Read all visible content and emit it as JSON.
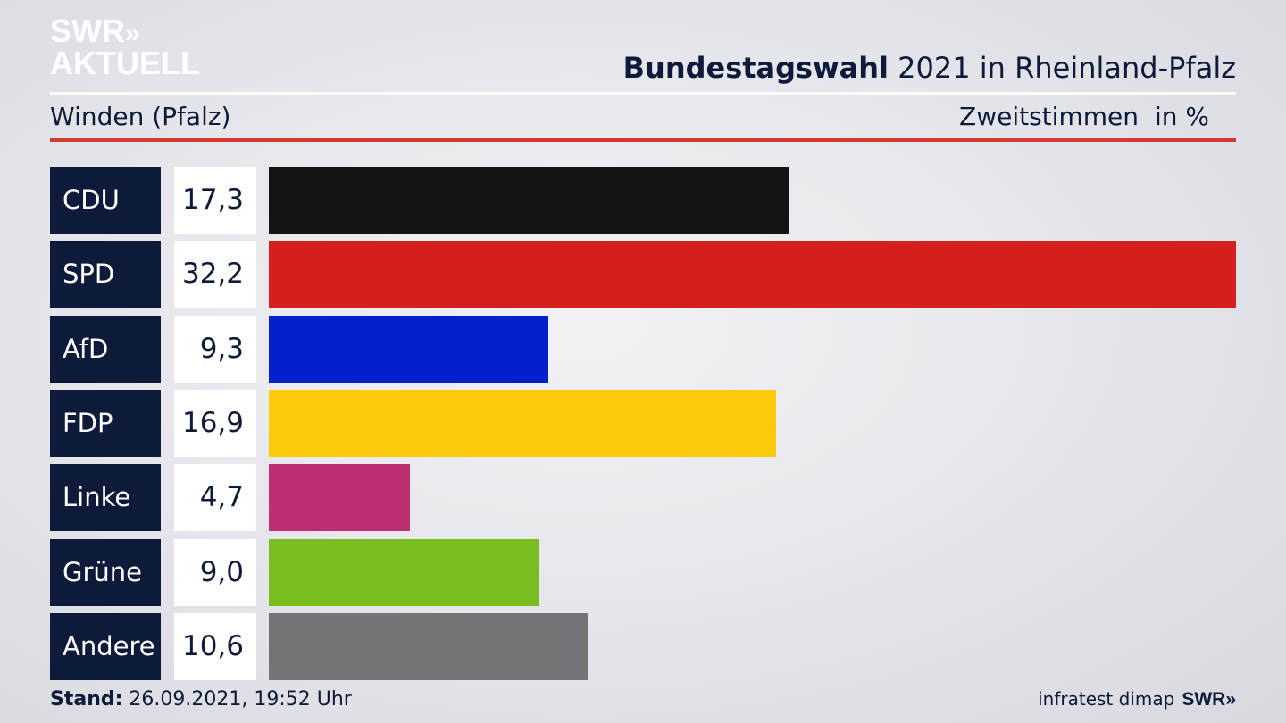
{
  "logo": {
    "line1": "SWR",
    "line1_chevrons": "»",
    "line2": "AKTUELL"
  },
  "header": {
    "title_bold": "Bundestagswahl",
    "title_rest": " 2021 in Rheinland-Pfalz"
  },
  "subheader": {
    "left": "Winden (Pfalz)",
    "right": "Zweitstimmen",
    "unit": "in %"
  },
  "chart_data": {
    "type": "bar",
    "orientation": "horizontal",
    "categories": [
      "CDU",
      "SPD",
      "AfD",
      "FDP",
      "Linke",
      "Grüne",
      "Andere"
    ],
    "values": [
      17.3,
      32.2,
      9.3,
      16.9,
      4.7,
      9.0,
      10.6
    ],
    "value_labels": [
      "17,3",
      "32,2",
      "9,3",
      "16,9",
      "4,7",
      "9,0",
      "10,6"
    ],
    "colors": [
      "#141414",
      "#d61f1f",
      "#0420cc",
      "#fdcb0a",
      "#be2f72",
      "#78be1e",
      "#747476"
    ],
    "xlim": [
      0,
      32.2
    ],
    "grid": false,
    "legend": "none"
  },
  "footer": {
    "stand_label": "Stand:",
    "stand_value": " 26.09.2021, 19:52 Uhr",
    "source": "infratest dimap",
    "brand": "SWR",
    "brand_chevrons": "»"
  },
  "colors": {
    "navy": "#0d1a3a",
    "accent_red": "#d13a33"
  }
}
